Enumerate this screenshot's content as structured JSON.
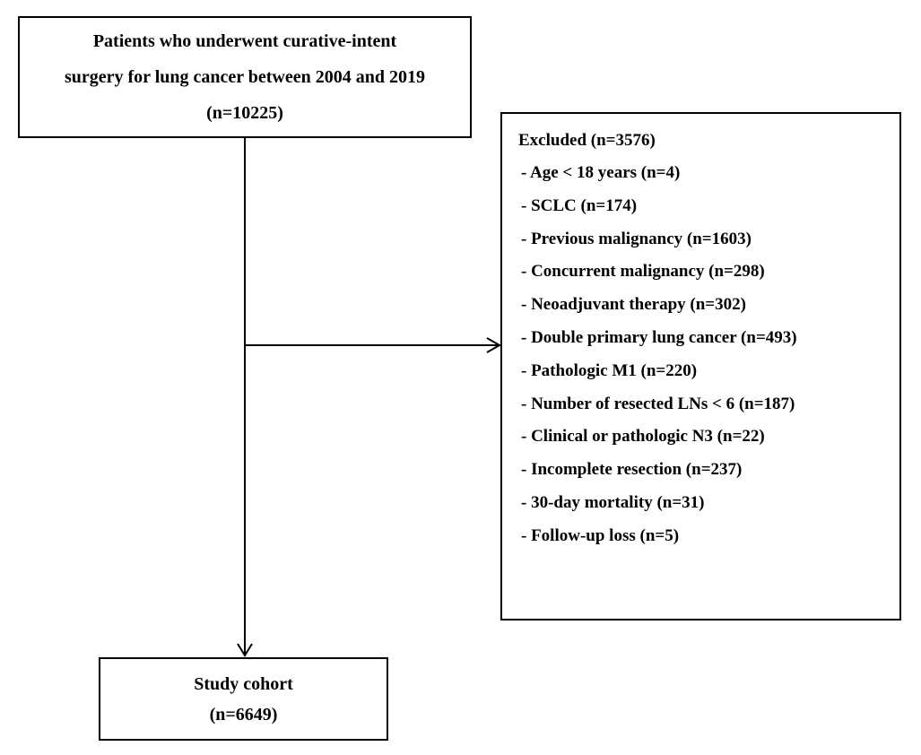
{
  "diagram": {
    "type": "flowchart",
    "start": {
      "lines": [
        "Patients who underwent curative-intent",
        "surgery for lung cancer between 2004 and 2019",
        "(n=10225)"
      ]
    },
    "excluded": {
      "title": "Excluded (n=3576)",
      "items": [
        "- Age < 18 years (n=4)",
        "- SCLC (n=174)",
        "- Previous malignancy (n=1603)",
        "- Concurrent malignancy (n=298)",
        "- Neoadjuvant therapy (n=302)",
        "- Double primary lung cancer (n=493)",
        "- Pathologic M1 (n=220)",
        "- Number of resected LNs < 6 (n=187)",
        "- Clinical or pathologic N3 (n=22)",
        "- Incomplete resection (n=237)",
        "- 30-day mortality (n=31)",
        "- Follow-up loss (n=5)"
      ]
    },
    "end": {
      "lines": [
        "Study cohort",
        "(n=6649)"
      ]
    },
    "colors": {
      "stroke": "#000000",
      "background": "#ffffff",
      "text": "#000000"
    }
  }
}
